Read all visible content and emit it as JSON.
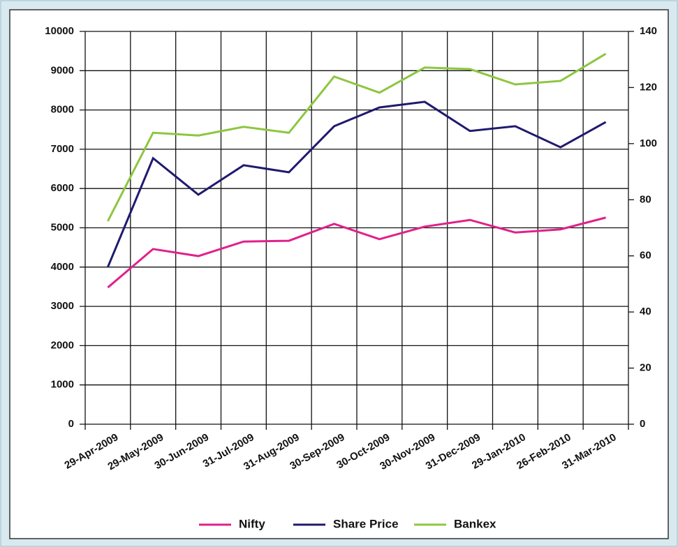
{
  "chart_data": {
    "type": "line",
    "categories": [
      "29-Apr-2009",
      "29-May-2009",
      "30-Jun-2009",
      "31-Jul-2009",
      "31-Aug-2009",
      "30-Sep-2009",
      "30-Oct-2009",
      "30-Nov-2009",
      "31-Dec-2009",
      "29-Jan-2010",
      "26-Feb-2010",
      "31-Mar-2010"
    ],
    "series": [
      {
        "name": "Nifty",
        "color": "#e0218a",
        "values": [
          3480,
          4460,
          4280,
          4650,
          4670,
          5100,
          4710,
          5030,
          5200,
          4880,
          4960,
          5260
        ]
      },
      {
        "name": "Share Price",
        "color": "#1f1a6e",
        "axis": "y2",
        "values": [
          56,
          94.8,
          81.8,
          92.3,
          89.8,
          106.2,
          112.9,
          114.9,
          104.5,
          106.2,
          98.7,
          107.7
        ]
      },
      {
        "name": "Bankex",
        "color": "#8dc63f",
        "values": [
          5170,
          7420,
          7350,
          7570,
          7420,
          8850,
          8440,
          9080,
          9040,
          8650,
          8740,
          9430
        ]
      }
    ],
    "ylim": [
      0,
      10000
    ],
    "yticks": [
      0,
      1000,
      2000,
      3000,
      4000,
      5000,
      6000,
      7000,
      8000,
      9000,
      10000
    ],
    "y2lim": [
      0,
      140
    ],
    "y2ticks": [
      0,
      20,
      40,
      60,
      80,
      100,
      120,
      140
    ],
    "grid": true,
    "legend": "bottom"
  }
}
